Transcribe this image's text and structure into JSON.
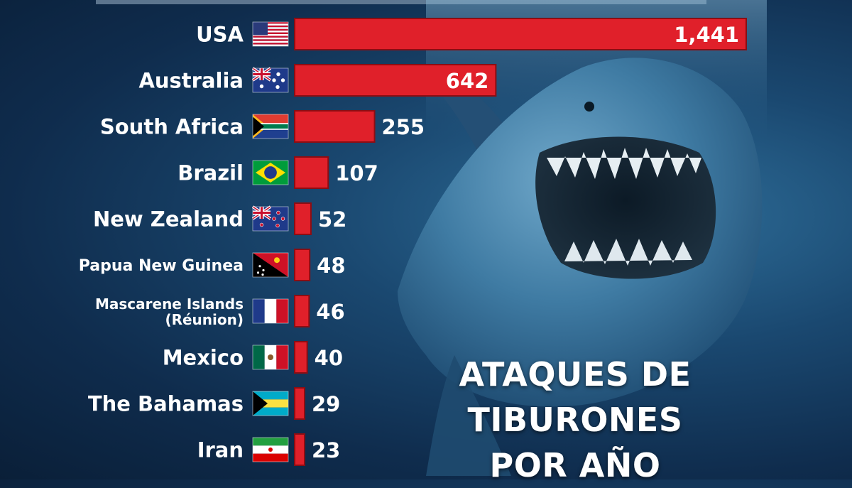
{
  "caption": {
    "line1": "ATAQUES DE TIBURONES",
    "line2": "POR AÑO"
  },
  "colors": {
    "bar": "#e0202a",
    "bar_outline": "#8c0d13",
    "label": "#ffffff",
    "value_inside": "#ffffff"
  },
  "chart_data": {
    "type": "bar",
    "orientation": "horizontal",
    "categories": [
      "USA",
      "Australia",
      "South Africa",
      "Brazil",
      "New Zealand",
      "Papua New Guinea",
      "Mascarene Islands (Réunion)",
      "Mexico",
      "The Bahamas",
      "Iran"
    ],
    "category_lines": [
      [
        "USA"
      ],
      [
        "Australia"
      ],
      [
        "South Africa"
      ],
      [
        "Brazil"
      ],
      [
        "New Zealand"
      ],
      [
        "Papua New Guinea"
      ],
      [
        "Mascarene Islands",
        "(Réunion)"
      ],
      [
        "Mexico"
      ],
      [
        "The Bahamas"
      ],
      [
        "Iran"
      ]
    ],
    "values": [
      1441,
      642,
      255,
      107,
      52,
      48,
      46,
      40,
      29,
      23
    ],
    "value_labels": [
      "1,441",
      "642",
      "255",
      "107",
      "52",
      "48",
      "46",
      "40",
      "29",
      "23"
    ],
    "flags": [
      "usa-flag",
      "australia-flag",
      "south-africa-flag",
      "brazil-flag",
      "new-zealand-flag",
      "papua-new-guinea-flag",
      "france-flag",
      "mexico-flag",
      "bahamas-flag",
      "iran-flag"
    ],
    "grid": false,
    "legend": "none"
  }
}
